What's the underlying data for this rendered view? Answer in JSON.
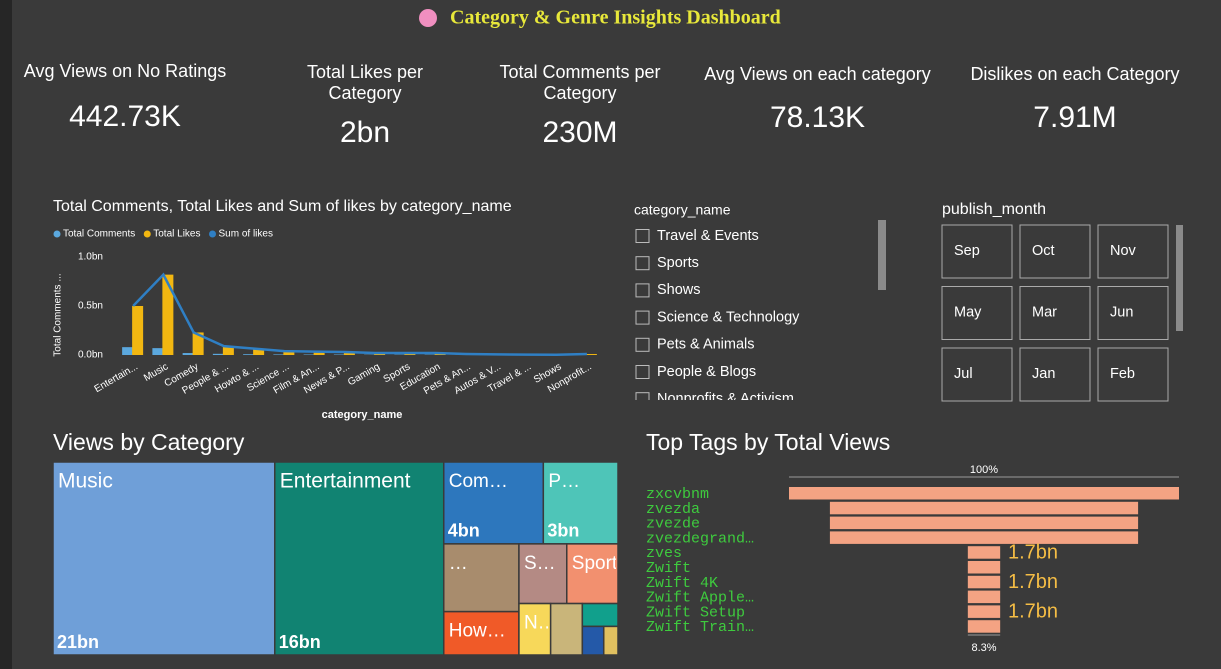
{
  "header": {
    "title": "Category & Genre Insights Dashboard"
  },
  "kpis": [
    {
      "label": "Avg Views on No Ratings",
      "value": "442.73K"
    },
    {
      "label": "Total Likes per Category",
      "value": "2bn"
    },
    {
      "label": "Total Comments per Category",
      "value": "230M"
    },
    {
      "label": "Avg Views on each category",
      "value": "78.13K"
    },
    {
      "label": "Dislikes on each Category",
      "value": "7.91M"
    }
  ],
  "combo_chart": {
    "type": "bar",
    "title": "Total Comments, Total Likes and Sum of likes by category_name",
    "x_label": "category_name",
    "y_label": "Total Comments ...",
    "categories": [
      "Entertain...",
      "Music",
      "Comedy",
      "People & ...",
      "Howto & ...",
      "Science ...",
      "Film & An...",
      "News & P...",
      "Gaming",
      "Sports",
      "Education",
      "Pets & An...",
      "Autos & V...",
      "Travel & ...",
      "Shows",
      "Nonprofit..."
    ],
    "series": [
      {
        "name": "Total Comments",
        "kind": "bar",
        "color": "#5ba8de",
        "values": [
          80000000,
          70000000,
          20000000,
          12000000,
          8000000,
          6000000,
          5000000,
          5000000,
          3000000,
          3000000,
          3000000,
          1000000,
          1000000,
          500000,
          300000,
          1000000
        ]
      },
      {
        "name": "Total Likes",
        "kind": "bar",
        "color": "#f2b711",
        "values": [
          500000000,
          820000000,
          230000000,
          90000000,
          65000000,
          40000000,
          35000000,
          30000000,
          20000000,
          20000000,
          20000000,
          10000000,
          6000000,
          4000000,
          2000000,
          10000000
        ]
      },
      {
        "name": "Sum of likes",
        "kind": "line",
        "color": "#2f7fc4",
        "values": [
          500000000,
          820000000,
          230000000,
          90000000,
          65000000,
          40000000,
          35000000,
          30000000,
          20000000,
          20000000,
          20000000,
          10000000,
          6000000,
          4000000,
          2000000,
          10000000
        ]
      }
    ],
    "ylim": [
      0,
      1000000000
    ],
    "yticks": [
      {
        "value": 0,
        "label": "0.0bn"
      },
      {
        "value": 500000000,
        "label": "0.5bn"
      },
      {
        "value": 1000000000,
        "label": "1.0bn"
      }
    ]
  },
  "category_slicer": {
    "title": "category_name",
    "items": [
      "Travel & Events",
      "Sports",
      "Shows",
      "Science & Technology",
      "Pets & Animals",
      "People & Blogs",
      "Nonprofits & Activism"
    ]
  },
  "month_slicer": {
    "title": "publish_month",
    "items": [
      "Sep",
      "Oct",
      "Nov",
      "May",
      "Mar",
      "Jun",
      "Jul",
      "Jan",
      "Feb"
    ]
  },
  "treemap": {
    "type": "treemap",
    "title": "Views by Category",
    "tiles": [
      {
        "name": "Music",
        "value": 21,
        "value_label": "21bn",
        "color": "#6f9fd8"
      },
      {
        "name": "Entertainment",
        "value": 16,
        "value_label": "16bn",
        "color": "#118372"
      },
      {
        "name": "Com…",
        "value": 4,
        "value_label": "4bn",
        "color": "#2d77bd"
      },
      {
        "name": "P…",
        "value": 3,
        "value_label": "3bn",
        "color": "#4ec5b8"
      },
      {
        "name": "…",
        "value": 2.5,
        "color": "#a88c6d"
      },
      {
        "name": "How…",
        "value": 1.6,
        "color": "#f05a28"
      },
      {
        "name": "S…",
        "value": 1.4,
        "color": "#b48a84"
      },
      {
        "name": "Sports",
        "value": 1.5,
        "color": "#f2906f"
      },
      {
        "name": "N…",
        "value": 0.8,
        "color": "#f7d85a"
      },
      {
        "name": null,
        "value": 0.8,
        "color": "#c9b57a"
      },
      {
        "name": null,
        "value": 0.4,
        "color": "#11a08c"
      },
      {
        "name": null,
        "value": 0.3,
        "color": "#2459a8"
      },
      {
        "name": null,
        "value": 0.2,
        "color": "#e0c060"
      }
    ]
  },
  "funnel": {
    "type": "funnel",
    "title": "Top Tags by Total Views",
    "top_label": "100%",
    "bottom_label": "8.3%",
    "color": "#f4a383",
    "categories": [
      "zxcvbnm",
      "zvezda",
      "zvezde",
      "zvezdegrand…",
      "zves",
      "Zwift",
      "Zwift 4K",
      "Zwift Apple…",
      "Zwift Setup",
      "Zwift Train…"
    ],
    "values": [
      20.5,
      16.2,
      16.2,
      16.2,
      1.7,
      1.7,
      1.7,
      1.7,
      1.7,
      1.7
    ],
    "value_labels": [
      "",
      "",
      "",
      "",
      "1.7bn",
      null,
      "1.7bn",
      null,
      "1.7bn",
      null
    ]
  }
}
